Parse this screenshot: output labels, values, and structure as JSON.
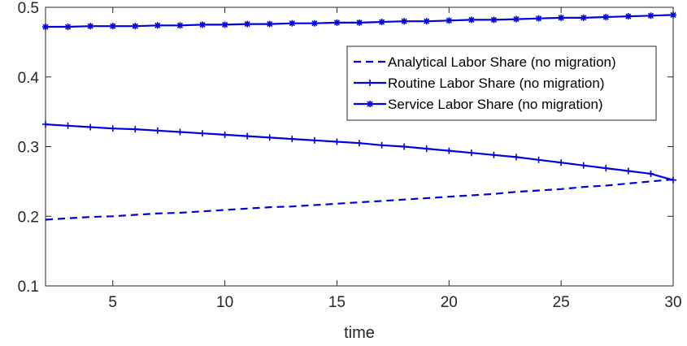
{
  "chart_data": {
    "type": "line",
    "title": "",
    "xlabel": "time",
    "ylabel": "",
    "xlim": [
      2,
      30
    ],
    "ylim": [
      0.1,
      0.5
    ],
    "xticks": [
      5,
      10,
      15,
      20,
      25,
      30
    ],
    "xtick_labels": [
      "5",
      "10",
      "15",
      "20",
      "25",
      "30"
    ],
    "yticks": [
      0.1,
      0.2,
      0.3,
      0.4,
      0.5
    ],
    "ytick_labels": [
      "0.1",
      "0.2",
      "0.3",
      "0.4",
      "0.5"
    ],
    "grid": false,
    "legend_position": "top-right",
    "x": [
      2,
      3,
      4,
      5,
      6,
      7,
      8,
      9,
      10,
      11,
      12,
      13,
      14,
      15,
      16,
      17,
      18,
      19,
      20,
      21,
      22,
      23,
      24,
      25,
      26,
      27,
      28,
      29,
      30
    ],
    "series": [
      {
        "name": "Analytical Labor Share (no migration)",
        "style": "dashed",
        "marker": "none",
        "color": "#0000dd",
        "values": [
          0.195,
          0.197,
          0.199,
          0.2,
          0.202,
          0.204,
          0.205,
          0.207,
          0.209,
          0.211,
          0.213,
          0.214,
          0.216,
          0.218,
          0.22,
          0.222,
          0.224,
          0.226,
          0.228,
          0.23,
          0.232,
          0.235,
          0.237,
          0.239,
          0.242,
          0.244,
          0.247,
          0.25,
          0.253
        ]
      },
      {
        "name": "Routine Labor Share (no migration)",
        "style": "solid",
        "marker": "plus",
        "color": "#0000dd",
        "values": [
          0.332,
          0.33,
          0.328,
          0.326,
          0.325,
          0.323,
          0.321,
          0.319,
          0.317,
          0.315,
          0.313,
          0.311,
          0.309,
          0.307,
          0.305,
          0.302,
          0.3,
          0.297,
          0.294,
          0.291,
          0.288,
          0.285,
          0.281,
          0.277,
          0.273,
          0.269,
          0.265,
          0.261,
          0.252
        ]
      },
      {
        "name": "Service Labor Share (no migration)",
        "style": "solid",
        "marker": "asterisk",
        "color": "#0000dd",
        "values": [
          0.472,
          0.472,
          0.473,
          0.473,
          0.473,
          0.474,
          0.474,
          0.475,
          0.475,
          0.476,
          0.476,
          0.477,
          0.477,
          0.478,
          0.478,
          0.479,
          0.48,
          0.48,
          0.481,
          0.482,
          0.482,
          0.483,
          0.484,
          0.485,
          0.485,
          0.486,
          0.487,
          0.488,
          0.489
        ]
      }
    ]
  }
}
